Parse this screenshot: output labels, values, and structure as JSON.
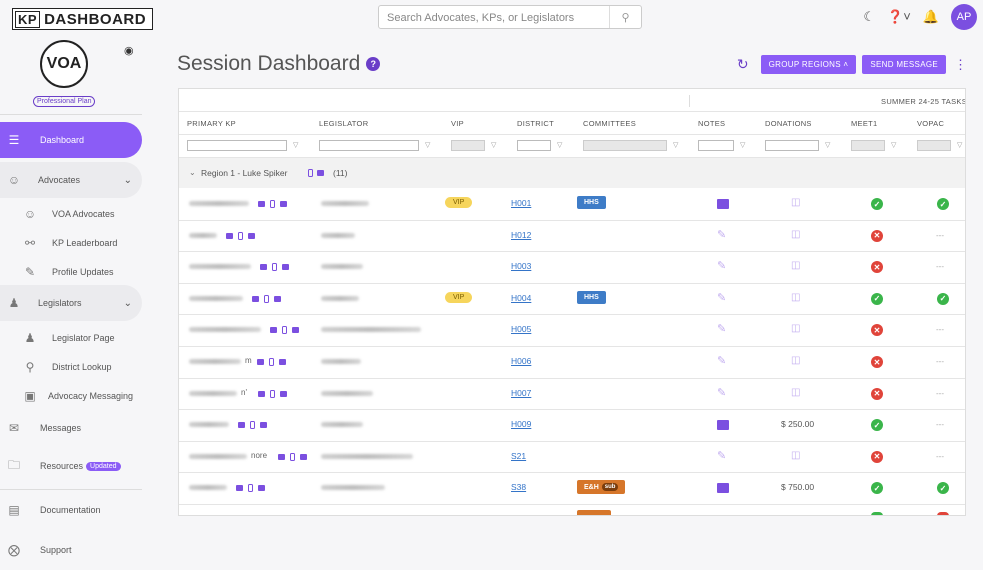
{
  "app": {
    "logo_kp": "KP",
    "logo_text": "DASHBOARD"
  },
  "search": {
    "placeholder": "Search Advocates, KPs, or Legislators"
  },
  "user": {
    "initials": "AP"
  },
  "sidebar": {
    "org_logo": "VOA",
    "plan": "Professional Plan",
    "items": [
      {
        "label": "Dashboard"
      },
      {
        "label": "Advocates"
      },
      {
        "label": "VOA Advocates"
      },
      {
        "label": "KP Leaderboard"
      },
      {
        "label": "Profile Updates"
      },
      {
        "label": "Legislators"
      },
      {
        "label": "Legislator Page"
      },
      {
        "label": "District Lookup"
      },
      {
        "label": "Advocacy Messaging"
      },
      {
        "label": "Messages"
      },
      {
        "label": "Resources",
        "badge": "Updated"
      },
      {
        "label": "Documentation"
      },
      {
        "label": "Support"
      }
    ]
  },
  "main": {
    "title": "Session Dashboard",
    "group_regions": "GROUP REGIONS",
    "send_message": "SEND MESSAGE",
    "table": {
      "super_header": "SUMMER 24-25 TASKS",
      "columns": [
        "PRIMARY KP",
        "LEGISLATOR",
        "VIP",
        "DISTRICT",
        "COMMITTEES",
        "NOTES",
        "DONATIONS",
        "MEET1",
        "VOPAC"
      ],
      "group_label": "Region 1 - Luke Spiker",
      "group_count": "(11)",
      "rows": [
        {
          "kp_suffix": "",
          "vip": "VIP",
          "district": "H001",
          "committee": "HHS",
          "note": "filled",
          "donation": "",
          "meet1": "ok",
          "vopac": "ok"
        },
        {
          "kp_suffix": "",
          "vip": "",
          "district": "H012",
          "committee": "",
          "note": "empty",
          "donation": "",
          "meet1": "no",
          "vopac": "---"
        },
        {
          "kp_suffix": "",
          "vip": "",
          "district": "H003",
          "committee": "",
          "note": "empty",
          "donation": "",
          "meet1": "no",
          "vopac": "---"
        },
        {
          "kp_suffix": "",
          "vip": "VIP",
          "district": "H004",
          "committee": "HHS",
          "note": "empty",
          "donation": "",
          "meet1": "ok",
          "vopac": "ok"
        },
        {
          "kp_suffix": "",
          "vip": "",
          "district": "H005",
          "committee": "",
          "note": "empty",
          "donation": "",
          "meet1": "no",
          "vopac": "---"
        },
        {
          "kp_suffix": "m",
          "vip": "",
          "district": "H006",
          "committee": "",
          "note": "empty",
          "donation": "",
          "meet1": "no",
          "vopac": "---"
        },
        {
          "kp_suffix": "n'",
          "vip": "",
          "district": "H007",
          "committee": "",
          "note": "empty",
          "donation": "",
          "meet1": "no",
          "vopac": "---"
        },
        {
          "kp_suffix": "",
          "vip": "",
          "district": "H009",
          "committee": "",
          "note": "filled",
          "donation": "$ 250.00",
          "meet1": "ok",
          "vopac": "---"
        },
        {
          "kp_suffix": "nore",
          "vip": "",
          "district": "S21",
          "committee": "",
          "note": "empty",
          "donation": "",
          "meet1": "no",
          "vopac": "---"
        },
        {
          "kp_suffix": "",
          "vip": "",
          "district": "S38",
          "committee": "E&H",
          "committee_sub": "sub",
          "note": "filled",
          "donation": "$ 750.00",
          "meet1": "ok",
          "vopac": "ok"
        }
      ]
    }
  },
  "colors": {
    "accent": "#8b5cf6",
    "ok": "#3ab54a",
    "no": "#e0443a",
    "vip": "#f6d55c",
    "hhs": "#3e7cc7",
    "eh": "#d6762a"
  }
}
